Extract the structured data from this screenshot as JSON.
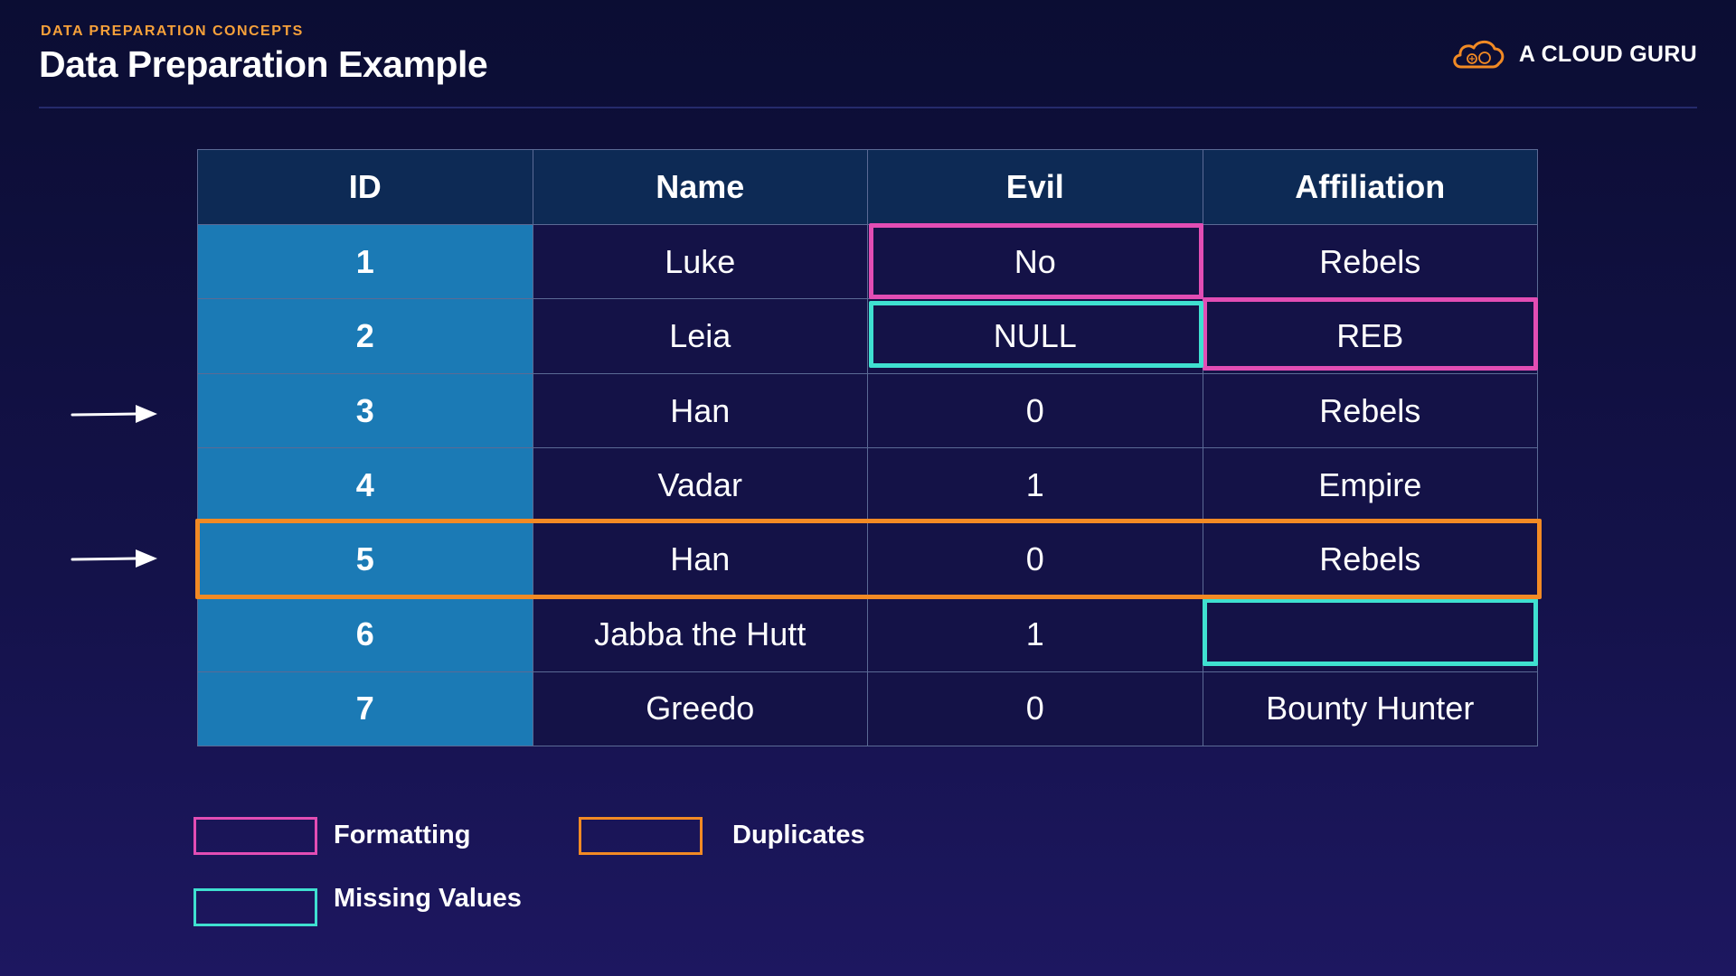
{
  "header": {
    "eyebrow": "DATA PREPARATION CONCEPTS",
    "title": "Data Preparation Example",
    "brand": "A CLOUD GURU"
  },
  "table": {
    "columns": [
      "ID",
      "Name",
      "Evil",
      "Affiliation"
    ],
    "rows": [
      {
        "id": "1",
        "name": "Luke",
        "evil": "No",
        "affiliation": "Rebels"
      },
      {
        "id": "2",
        "name": "Leia",
        "evil": "NULL",
        "affiliation": "REB"
      },
      {
        "id": "3",
        "name": "Han",
        "evil": "0",
        "affiliation": "Rebels"
      },
      {
        "id": "4",
        "name": "Vadar",
        "evil": "1",
        "affiliation": "Empire"
      },
      {
        "id": "5",
        "name": "Han",
        "evil": "0",
        "affiliation": "Rebels"
      },
      {
        "id": "6",
        "name": "Jabba the Hutt",
        "evil": "1",
        "affiliation": ""
      },
      {
        "id": "7",
        "name": "Greedo",
        "evil": "0",
        "affiliation": "Bounty Hunter"
      }
    ]
  },
  "legend": {
    "formatting": "Formatting",
    "duplicates": "Duplicates",
    "missing": "Missing Values"
  },
  "colors": {
    "formatting": "#e24db4",
    "duplicates": "#f28a24",
    "missing": "#3fe0d0",
    "id_column": "#1b7ab5",
    "header_row": "#0d2a55",
    "eyebrow": "#f7a13a"
  },
  "icons": {
    "brand_logo": "cloud-icon",
    "row_pointer": "arrow-right-icon"
  }
}
